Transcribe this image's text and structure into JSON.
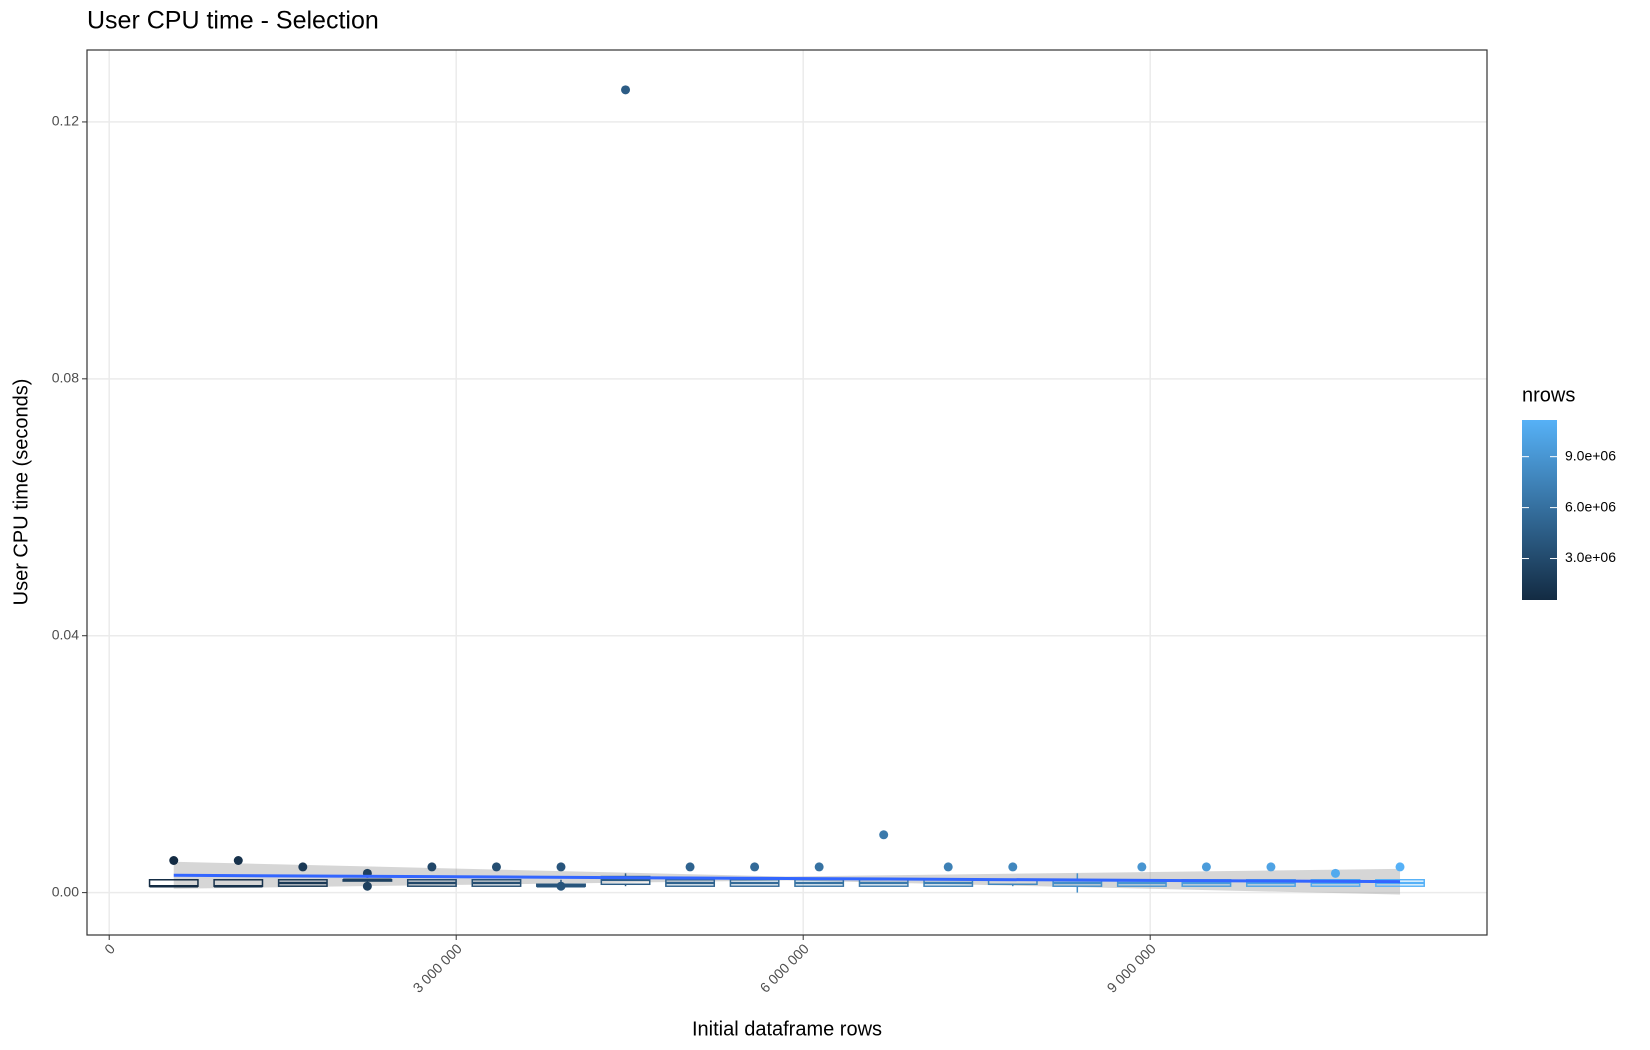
{
  "chart_data": {
    "type": "boxplot",
    "title": "User CPU time - Selection",
    "x_label": "Initial dataframe rows",
    "y_label": "User CPU time (seconds)",
    "x": [
      558000,
      1116000,
      1674000,
      2232000,
      2790000,
      3348000,
      3906000,
      4464000,
      5022000,
      5580000,
      6138000,
      6696000,
      7254000,
      7812000,
      8370000,
      8928000,
      9486000,
      10044000,
      10602000,
      11160000
    ],
    "boxes": {
      "min": [
        0.001,
        0.001,
        0.001,
        0.0015,
        0.001,
        0.001,
        0.001,
        0.001,
        0.001,
        0.001,
        0.001,
        0.001,
        0.001,
        0.001,
        0,
        0.001,
        0.001,
        0.001,
        0.001,
        0.001
      ],
      "q1": [
        0.001,
        0.001,
        0.001,
        0.0018,
        0.001,
        0.001,
        0.001,
        0.0013,
        0.001,
        0.001,
        0.001,
        0.001,
        0.001,
        0.0013,
        0.001,
        0.001,
        0.001,
        0.001,
        0.001,
        0.001
      ],
      "median": [
        0.001,
        0.001,
        0.0015,
        0.002,
        0.0015,
        0.0015,
        0.001,
        0.002,
        0.0015,
        0.0015,
        0.0015,
        0.0015,
        0.0015,
        0.002,
        0.0015,
        0.0015,
        0.0015,
        0.0015,
        0.0015,
        0.0015
      ],
      "q3": [
        0.002,
        0.002,
        0.002,
        0.002,
        0.002,
        0.002,
        0.0013,
        0.0025,
        0.002,
        0.002,
        0.002,
        0.002,
        0.002,
        0.002,
        0.002,
        0.002,
        0.002,
        0.002,
        0.002,
        0.002
      ],
      "max": [
        0.002,
        0.002,
        0.002,
        0.002,
        0.002,
        0.002,
        0.002,
        0.003,
        0.002,
        0.002,
        0.002,
        0.002,
        0.002,
        0.002,
        0.003,
        0.002,
        0.002,
        0.002,
        0.002,
        0.002
      ]
    },
    "outliers": [
      [
        0.005
      ],
      [
        0.005
      ],
      [
        0.004
      ],
      [
        0.003,
        0.001
      ],
      [
        0.004
      ],
      [
        0.004
      ],
      [
        0.004,
        0.001
      ],
      [
        0.125
      ],
      [
        0.004
      ],
      [
        0.004
      ],
      [
        0.004
      ],
      [
        0.009
      ],
      [
        0.004
      ],
      [
        0.004
      ],
      [],
      [
        0.004
      ],
      [
        0.004
      ],
      [
        0.004
      ],
      [
        0.003
      ],
      [
        0.004
      ]
    ],
    "smooth": {
      "x": [
        558000,
        5859000,
        11160000
      ],
      "values": [
        0.0027,
        0.0022,
        0.0017
      ],
      "lower": [
        0.0006,
        0.0019,
        -0.0003
      ],
      "upper": [
        0.0048,
        0.0025,
        0.0037
      ],
      "color": "#3366FF",
      "ribbon_color": "#999999"
    },
    "xlim": [
      -192000,
      11912000
    ],
    "xticks": [
      {
        "value": 0,
        "label": "0"
      },
      {
        "value": 3000000,
        "label": "3 000 000"
      },
      {
        "value": 6000000,
        "label": "6 000 000"
      },
      {
        "value": 9000000,
        "label": "9 000 000"
      }
    ],
    "ylim": [
      -0.0066,
      0.1312
    ],
    "yticks": [
      {
        "value": 0,
        "label": "0.00"
      },
      {
        "value": 0.04,
        "label": "0.04"
      },
      {
        "value": 0.08,
        "label": "0.08"
      },
      {
        "value": 0.12,
        "label": "0.12"
      }
    ],
    "grid": true,
    "legend": {
      "title": "nrows",
      "position": "right",
      "low": "#132B43",
      "high": "#56B1F7",
      "limits": [
        558000,
        11160000
      ],
      "ticks": [
        {
          "value": 3000000,
          "label": "3.0e+06"
        },
        {
          "value": 6000000,
          "label": "6.0e+06"
        },
        {
          "value": 9000000,
          "label": "9.0e+06"
        }
      ]
    }
  }
}
